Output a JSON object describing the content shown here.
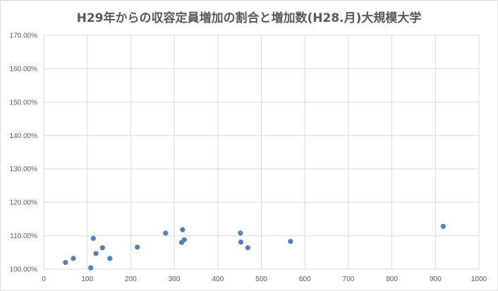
{
  "chart_data": {
    "type": "scatter",
    "title": "H29年からの収容定員増加の割合と増加数(H28.月)大規模大学",
    "xlabel": "",
    "ylabel": "",
    "xlim": [
      0,
      1000
    ],
    "ylim": [
      1.0,
      1.7
    ],
    "grid": true,
    "legend": "none",
    "x_ticks": [
      "0",
      "100",
      "200",
      "300",
      "400",
      "500",
      "600",
      "700",
      "800",
      "900",
      "1000"
    ],
    "y_ticks": [
      "100.00%",
      "110.00%",
      "120.00%",
      "130.00%",
      "140.00%",
      "150.00%",
      "160.00%",
      "170.00%"
    ],
    "colors": {
      "points": "#4f81bd",
      "grid": "#d9d9d9"
    },
    "points": [
      {
        "x": 50,
        "y": 1.02
      },
      {
        "x": 68,
        "y": 1.032
      },
      {
        "x": 108,
        "y": 1.004
      },
      {
        "x": 114,
        "y": 1.092
      },
      {
        "x": 120,
        "y": 1.047
      },
      {
        "x": 135,
        "y": 1.064
      },
      {
        "x": 152,
        "y": 1.032
      },
      {
        "x": 215,
        "y": 1.066
      },
      {
        "x": 280,
        "y": 1.108
      },
      {
        "x": 317,
        "y": 1.08
      },
      {
        "x": 319,
        "y": 1.118
      },
      {
        "x": 323,
        "y": 1.088
      },
      {
        "x": 452,
        "y": 1.108
      },
      {
        "x": 453,
        "y": 1.081
      },
      {
        "x": 469,
        "y": 1.064
      },
      {
        "x": 567,
        "y": 1.083
      },
      {
        "x": 918,
        "y": 1.128
      }
    ]
  }
}
